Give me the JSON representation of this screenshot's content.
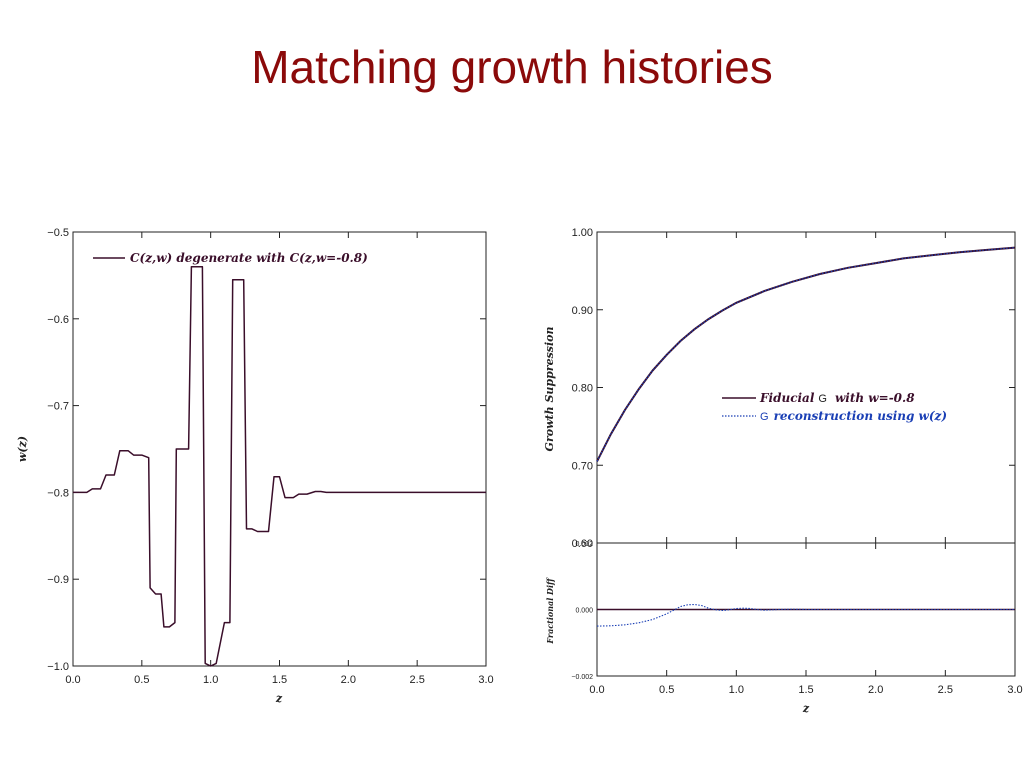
{
  "slide": {
    "title": "Matching growth histories"
  },
  "chart_data": [
    {
      "type": "line",
      "xlabel": "z",
      "ylabel": "w(z)",
      "xlim": [
        0,
        3
      ],
      "ylim": [
        -1.0,
        -0.5
      ],
      "x_ticks": [
        "0.0",
        "0.5",
        "1.0",
        "1.5",
        "2.0",
        "2.5",
        "3.0"
      ],
      "y_ticks": [
        "-0.5",
        "-0.6",
        "-0.7",
        "-0.8",
        "-0.9",
        "-1.0"
      ],
      "legend": "top-left",
      "color": "#3a0e2a",
      "series": [
        {
          "name": "C(z,w) degenerate with C(z,w=-0.8)",
          "x": [
            0,
            0.1,
            0.14,
            0.2,
            0.24,
            0.3,
            0.34,
            0.4,
            0.44,
            0.5,
            0.55,
            0.56,
            0.6,
            0.64,
            0.66,
            0.7,
            0.74,
            0.75,
            0.8,
            0.84,
            0.86,
            0.9,
            0.94,
            0.96,
            1.0,
            1.04,
            1.1,
            1.14,
            1.16,
            1.2,
            1.24,
            1.26,
            1.3,
            1.34,
            1.38,
            1.42,
            1.46,
            1.5,
            1.54,
            1.6,
            1.64,
            1.7,
            1.76,
            1.8,
            1.84,
            1.9,
            2.0,
            2.5,
            3.0
          ],
          "y": [
            -0.8,
            -0.8,
            -0.796,
            -0.796,
            -0.78,
            -0.78,
            -0.752,
            -0.752,
            -0.757,
            -0.757,
            -0.76,
            -0.91,
            -0.917,
            -0.917,
            -0.955,
            -0.955,
            -0.95,
            -0.75,
            -0.75,
            -0.75,
            -0.54,
            -0.54,
            -0.54,
            -0.997,
            -1.0,
            -0.997,
            -0.95,
            -0.95,
            -0.555,
            -0.555,
            -0.555,
            -0.842,
            -0.842,
            -0.845,
            -0.845,
            -0.845,
            -0.782,
            -0.782,
            -0.806,
            -0.806,
            -0.802,
            -0.802,
            -0.799,
            -0.799,
            -0.8,
            -0.8,
            -0.8,
            -0.8,
            -0.8
          ]
        }
      ]
    },
    {
      "type": "line",
      "xlabel": "",
      "ylabel": "Growth Suppression",
      "xlim": [
        0,
        3
      ],
      "ylim": [
        0.6,
        1.0
      ],
      "y_ticks": [
        "1.00",
        "0.90",
        "0.80",
        "0.70",
        "0.60"
      ],
      "legend": "center-right",
      "series": [
        {
          "name_prefix": "Fiducial",
          "name_g": "G",
          "name_suffix": "with w=-0.8",
          "color": "#3a0e2a",
          "style": "solid",
          "x": [
            0,
            0.1,
            0.2,
            0.3,
            0.4,
            0.5,
            0.6,
            0.7,
            0.8,
            0.9,
            1.0,
            1.2,
            1.4,
            1.6,
            1.8,
            2.0,
            2.2,
            2.4,
            2.6,
            2.8,
            3.0
          ],
          "y": [
            0.705,
            0.74,
            0.771,
            0.798,
            0.822,
            0.842,
            0.86,
            0.875,
            0.888,
            0.899,
            0.909,
            0.924,
            0.936,
            0.946,
            0.954,
            0.96,
            0.966,
            0.97,
            0.974,
            0.977,
            0.98
          ]
        },
        {
          "name_g": "G",
          "name_suffix": "reconstruction using w(z)",
          "color": "#1a3fb5",
          "style": "dotted",
          "x": [
            0,
            0.1,
            0.2,
            0.3,
            0.4,
            0.5,
            0.6,
            0.7,
            0.8,
            0.9,
            1.0,
            1.2,
            1.4,
            1.6,
            1.8,
            2.0,
            2.2,
            2.4,
            2.6,
            2.8,
            3.0
          ],
          "y": [
            0.705,
            0.74,
            0.771,
            0.798,
            0.822,
            0.842,
            0.86,
            0.875,
            0.888,
            0.899,
            0.909,
            0.924,
            0.936,
            0.946,
            0.954,
            0.96,
            0.966,
            0.97,
            0.974,
            0.977,
            0.98
          ]
        }
      ]
    },
    {
      "type": "line",
      "xlabel": "z",
      "ylabel": "Fractional Diff",
      "xlim": [
        0,
        3
      ],
      "ylim": [
        -0.002,
        0.002
      ],
      "x_ticks": [
        "0.0",
        "0.5",
        "1.0",
        "1.5",
        "2.0",
        "2.5",
        "3.0"
      ],
      "y_ticks": [
        "0.002",
        "0.000",
        "-0.002"
      ],
      "series": [
        {
          "color": "#3a0e2a",
          "style": "solid",
          "x": [
            0,
            3.0
          ],
          "y": [
            0,
            0
          ]
        },
        {
          "color": "#1a3fb5",
          "style": "dotted",
          "x": [
            0,
            0.1,
            0.2,
            0.3,
            0.4,
            0.5,
            0.55,
            0.6,
            0.65,
            0.7,
            0.75,
            0.8,
            0.85,
            0.9,
            0.95,
            1.0,
            1.05,
            1.1,
            1.15,
            1.2,
            1.3,
            1.4,
            1.5,
            3.0
          ],
          "y": [
            -0.0005,
            -0.00049,
            -0.00046,
            -0.0004,
            -0.0003,
            -0.00013,
            -2e-05,
            9e-05,
            0.00014,
            0.00015,
            0.00012,
            4e-05,
            -1e-05,
            -3e-05,
            -1e-05,
            3e-05,
            4e-05,
            3e-05,
            0.0,
            -2e-05,
            0.0,
            1e-05,
            0.0,
            0.0
          ]
        }
      ]
    }
  ]
}
